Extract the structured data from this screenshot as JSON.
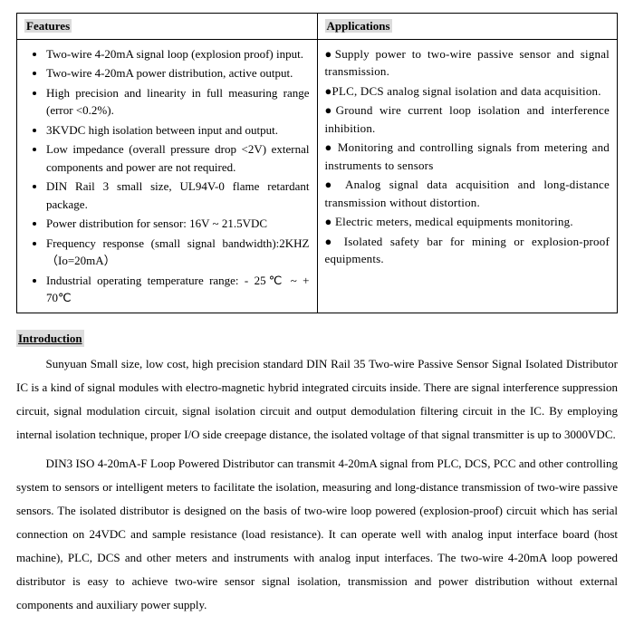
{
  "table": {
    "features_header": "Features",
    "applications_header": "Applications",
    "features": [
      "Two-wire 4-20mA signal loop (explosion proof) input.",
      "Two-wire 4-20mA power distribution, active output.",
      "High precision and linearity in full measuring range (error <0.2%).",
      "3KVDC high isolation between input and output.",
      "Low impedance (overall pressure drop <2V) external components and power are not required.",
      "DIN Rail 3 small size, UL94V-0 flame retardant package.",
      "Power distribution for sensor: 16V ~ 21.5VDC",
      "Frequency response (small signal bandwidth):2KHZ（Io=20mA）",
      "Industrial operating temperature range: - 25℃ ~ + 70℃"
    ],
    "applications": [
      "●Supply power to two-wire passive sensor and signal transmission.",
      "●PLC, DCS analog signal isolation and data acquisition.",
      "●Ground wire current loop isolation and interference inhibition.",
      "● Monitoring and controlling signals from metering and instruments to sensors",
      "● Analog signal data acquisition and long-distance transmission without distortion.",
      "● Electric meters, medical equipments monitoring.",
      "● Isolated safety bar for mining or explosion-proof equipments."
    ]
  },
  "intro": {
    "heading": "Introduction",
    "p1": "Sunyuan Small size, low cost, high precision standard DIN Rail 35 Two-wire Passive Sensor Signal Isolated Distributor IC is a kind of signal modules with electro-magnetic hybrid integrated circuits inside. There are signal interference suppression circuit, signal modulation circuit, signal isolation circuit and output demodulation filtering circuit in the IC. By employing internal isolation technique, proper I/O side creepage distance, the isolated voltage of that signal transmitter is up to 3000VDC.",
    "p2": "DIN3 ISO 4-20mA-F Loop Powered Distributor can transmit 4-20mA signal from PLC, DCS, PCC and other controlling system to sensors or intelligent meters to facilitate the isolation, measuring and long-distance transmission of two-wire passive sensors. The isolated distributor is designed on the basis of two-wire loop powered (explosion-proof) circuit which has serial connection on 24VDC and sample resistance (load resistance). It can operate well with analog input interface board (host machine), PLC, DCS and other meters and instruments with analog input interfaces. The two-wire 4-20mA loop powered distributor is easy to achieve two-wire sensor signal isolation, transmission and power distribution without external components and auxiliary power supply."
  }
}
